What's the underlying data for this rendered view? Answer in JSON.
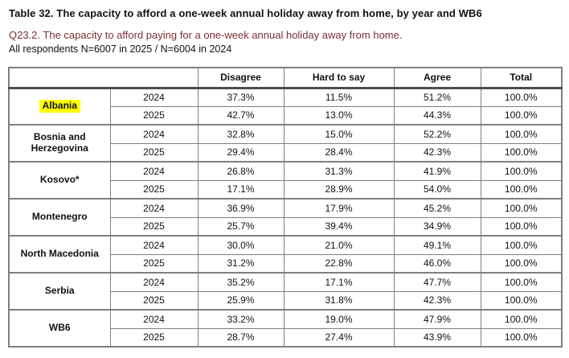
{
  "header": {
    "title": "Table 32. The capacity to afford a one-week annual holiday away from home, by year and WB6",
    "subtitle": "Q23.2. The capacity to afford paying for a one-week annual holiday away from home.",
    "respondents": "All respondents N=6007 in 2025 / N=6004 in 2024"
  },
  "table": {
    "columns": [
      "Disagree",
      "Hard to say",
      "Agree",
      "Total"
    ],
    "groups": [
      {
        "name": "Albania",
        "highlighted": true,
        "rows": [
          {
            "year": "2024",
            "values": [
              "37.3%",
              "11.5%",
              "51.2%",
              "100.0%"
            ]
          },
          {
            "year": "2025",
            "values": [
              "42.7%",
              "13.0%",
              "44.3%",
              "100.0%"
            ]
          }
        ]
      },
      {
        "name": "Bosnia and Herzegovina",
        "highlighted": false,
        "rows": [
          {
            "year": "2024",
            "values": [
              "32.8%",
              "15.0%",
              "52.2%",
              "100.0%"
            ]
          },
          {
            "year": "2025",
            "values": [
              "29.4%",
              "28.4%",
              "42.3%",
              "100.0%"
            ]
          }
        ]
      },
      {
        "name": "Kosovo*",
        "highlighted": false,
        "rows": [
          {
            "year": "2024",
            "values": [
              "26.8%",
              "31.3%",
              "41.9%",
              "100.0%"
            ]
          },
          {
            "year": "2025",
            "values": [
              "17.1%",
              "28.9%",
              "54.0%",
              "100.0%"
            ]
          }
        ]
      },
      {
        "name": "Montenegro",
        "highlighted": false,
        "rows": [
          {
            "year": "2024",
            "values": [
              "36.9%",
              "17.9%",
              "45.2%",
              "100.0%"
            ]
          },
          {
            "year": "2025",
            "values": [
              "25.7%",
              "39.4%",
              "34.9%",
              "100.0%"
            ]
          }
        ]
      },
      {
        "name": "North Macedonia",
        "highlighted": false,
        "rows": [
          {
            "year": "2024",
            "values": [
              "30.0%",
              "21.0%",
              "49.1%",
              "100.0%"
            ]
          },
          {
            "year": "2025",
            "values": [
              "31.2%",
              "22.8%",
              "46.0%",
              "100.0%"
            ]
          }
        ]
      },
      {
        "name": "Serbia",
        "highlighted": false,
        "rows": [
          {
            "year": "2024",
            "values": [
              "35.2%",
              "17.1%",
              "47.7%",
              "100.0%"
            ]
          },
          {
            "year": "2025",
            "values": [
              "25.9%",
              "31.8%",
              "42.3%",
              "100.0%"
            ]
          }
        ]
      },
      {
        "name": "WB6",
        "highlighted": false,
        "rows": [
          {
            "year": "2024",
            "values": [
              "33.2%",
              "19.0%",
              "47.9%",
              "100.0%"
            ]
          },
          {
            "year": "2025",
            "values": [
              "28.7%",
              "27.4%",
              "43.9%",
              "100.0%"
            ]
          }
        ]
      }
    ]
  },
  "colors": {
    "text": "#111111",
    "subtitle_text": "#7b3030",
    "highlight": "#ffff00",
    "table_border": "#7f7f7f",
    "header_rule": "#4d4d4d",
    "inner_rule": "#9c9c9c"
  }
}
